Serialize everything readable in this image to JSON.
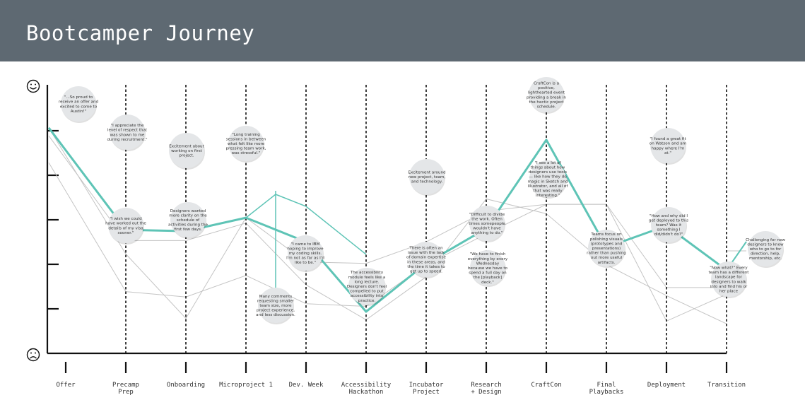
{
  "header": {
    "title": "Bootcamper Journey"
  },
  "colors": {
    "header": "#5e6972",
    "highlight": "#5ec4b6",
    "grey_line": "#c4c4c4",
    "bubble": "#e4e6e8"
  },
  "icons": {
    "top": "happy-face-icon",
    "bottom": "sad-face-icon"
  },
  "stages": [
    {
      "label": [
        "Offer"
      ]
    },
    {
      "label": [
        "Precamp",
        "Prep"
      ]
    },
    {
      "label": [
        "Onboarding"
      ]
    },
    {
      "label": [
        "Microproject 1"
      ]
    },
    {
      "label": [
        "Dev. Week"
      ]
    },
    {
      "label": [
        "Accessibility",
        "Hackathon"
      ]
    },
    {
      "label": [
        "Incubator",
        "Project"
      ]
    },
    {
      "label": [
        "Research",
        "+ Design"
      ]
    },
    {
      "label": [
        "CraftCon"
      ]
    },
    {
      "label": [
        "Final",
        "Playbacks"
      ]
    },
    {
      "label": [
        "Deployment"
      ]
    },
    {
      "label": [
        "Transition"
      ]
    }
  ],
  "average_sentiment": [
    0.84,
    0.46,
    0.455,
    0.505,
    0.415,
    0.155,
    0.335,
    0.465,
    0.795,
    0.395,
    0.475,
    0.31
  ],
  "individual_journeys": [
    [
      0.84,
      0.37,
      0.13,
      0.505,
      0.34,
      0.335,
      0.415,
      0.53,
      0.555,
      0.555,
      0.245,
      0.245
    ],
    [
      0.81,
      0.42,
      0.42,
      0.485,
      0.255,
      0.125,
      0.285,
      0.575,
      0.52,
      0.33,
      0.215,
      0.11
    ],
    [
      0.71,
      0.23,
      0.21,
      0.29,
      0.185,
      0.175,
      0.33,
      0.445,
      0.555,
      0.555,
      0.12,
      0.22
    ]
  ],
  "microproject_comment_drop": 0.23,
  "bubbles": [
    {
      "text": [
        "\"...So proud to",
        "receive an offer and",
        "excited to come to",
        "Austin!\""
      ]
    },
    {
      "text": [
        "\"I appreciate the",
        "level of respect that",
        "was shown to me",
        "during recruitment.\""
      ]
    },
    {
      "text": [
        "\"I wish we could",
        "have worked out the",
        "details of my visa",
        "sooner.\""
      ]
    },
    {
      "text": [
        "Excitement about",
        "working on first",
        "project."
      ]
    },
    {
      "text": [
        "Designers wanted",
        "more clarity on the",
        "schedule of",
        "activities during the",
        "first few days."
      ]
    },
    {
      "text": [
        "\"Long training",
        "sessions in between",
        "what felt like more",
        "pressing team work,",
        "was stressful.\""
      ]
    },
    {
      "text": [
        "Many comments",
        "requesting smaller",
        "team size, more",
        "project experience,",
        "and less discussion."
      ]
    },
    {
      "text": [
        "\"I came to IBM",
        "hoping to improve",
        "my coding skills.",
        "I'm not as far as I'd",
        "like to be.\""
      ]
    },
    {
      "text": [
        "The accessibility",
        "module feels like a",
        "long lecture.",
        "Designers don't feel",
        "compelled to put",
        "accessibility into",
        "practice."
      ]
    },
    {
      "text": [
        "Excitement around",
        "new project, team,",
        "and technology."
      ]
    },
    {
      "text": [
        "There is often an",
        "issue with the lack",
        "of domain expertise",
        "in these areas, and",
        "the time it takes to",
        "get up to speed."
      ]
    },
    {
      "text": [
        "\"Difficult to divide",
        "the work. Often",
        "times somepeople",
        "wouldn't have",
        "anything to do.\""
      ]
    },
    {
      "text": [
        "\"We have to finish",
        "everything by every",
        "Wednesday",
        "because we have to",
        "spend a full day on",
        "the [playback]",
        "deck.\""
      ]
    },
    {
      "text": [
        "CraftCon is a",
        "positive,",
        "lighthearted event",
        "providing a break in",
        "the hectic project",
        "schedule."
      ]
    },
    {
      "text": [
        "\"I see a lot of",
        "things about how",
        "designers use tools",
        "— like how they do",
        "magic in Sketch and",
        "Illustrator, and all of",
        "that was really",
        "interesting.\""
      ]
    },
    {
      "text": [
        "Teams focus on",
        "polishing visuals",
        "(prototypes and",
        "presentations)",
        "rather than pushing",
        "out more useful",
        "artifacts."
      ]
    },
    {
      "text": [
        "\"I found a great fit",
        "on Watson and am",
        "happy where I'm",
        "at.\""
      ]
    },
    {
      "text": [
        "\"How and why did I",
        "get deployed to this",
        "team? Was it",
        "something I",
        "did/didn't do?\""
      ]
    },
    {
      "text": [
        "\"Now what?\" Every",
        "team has a different",
        "landscape for",
        "designers to walk",
        "into and find his or",
        "her place"
      ]
    },
    {
      "text": [
        "Challenging for new",
        "designers to know",
        "who to go to for",
        "direction, help,",
        "mentorship, etc."
      ]
    }
  ]
}
